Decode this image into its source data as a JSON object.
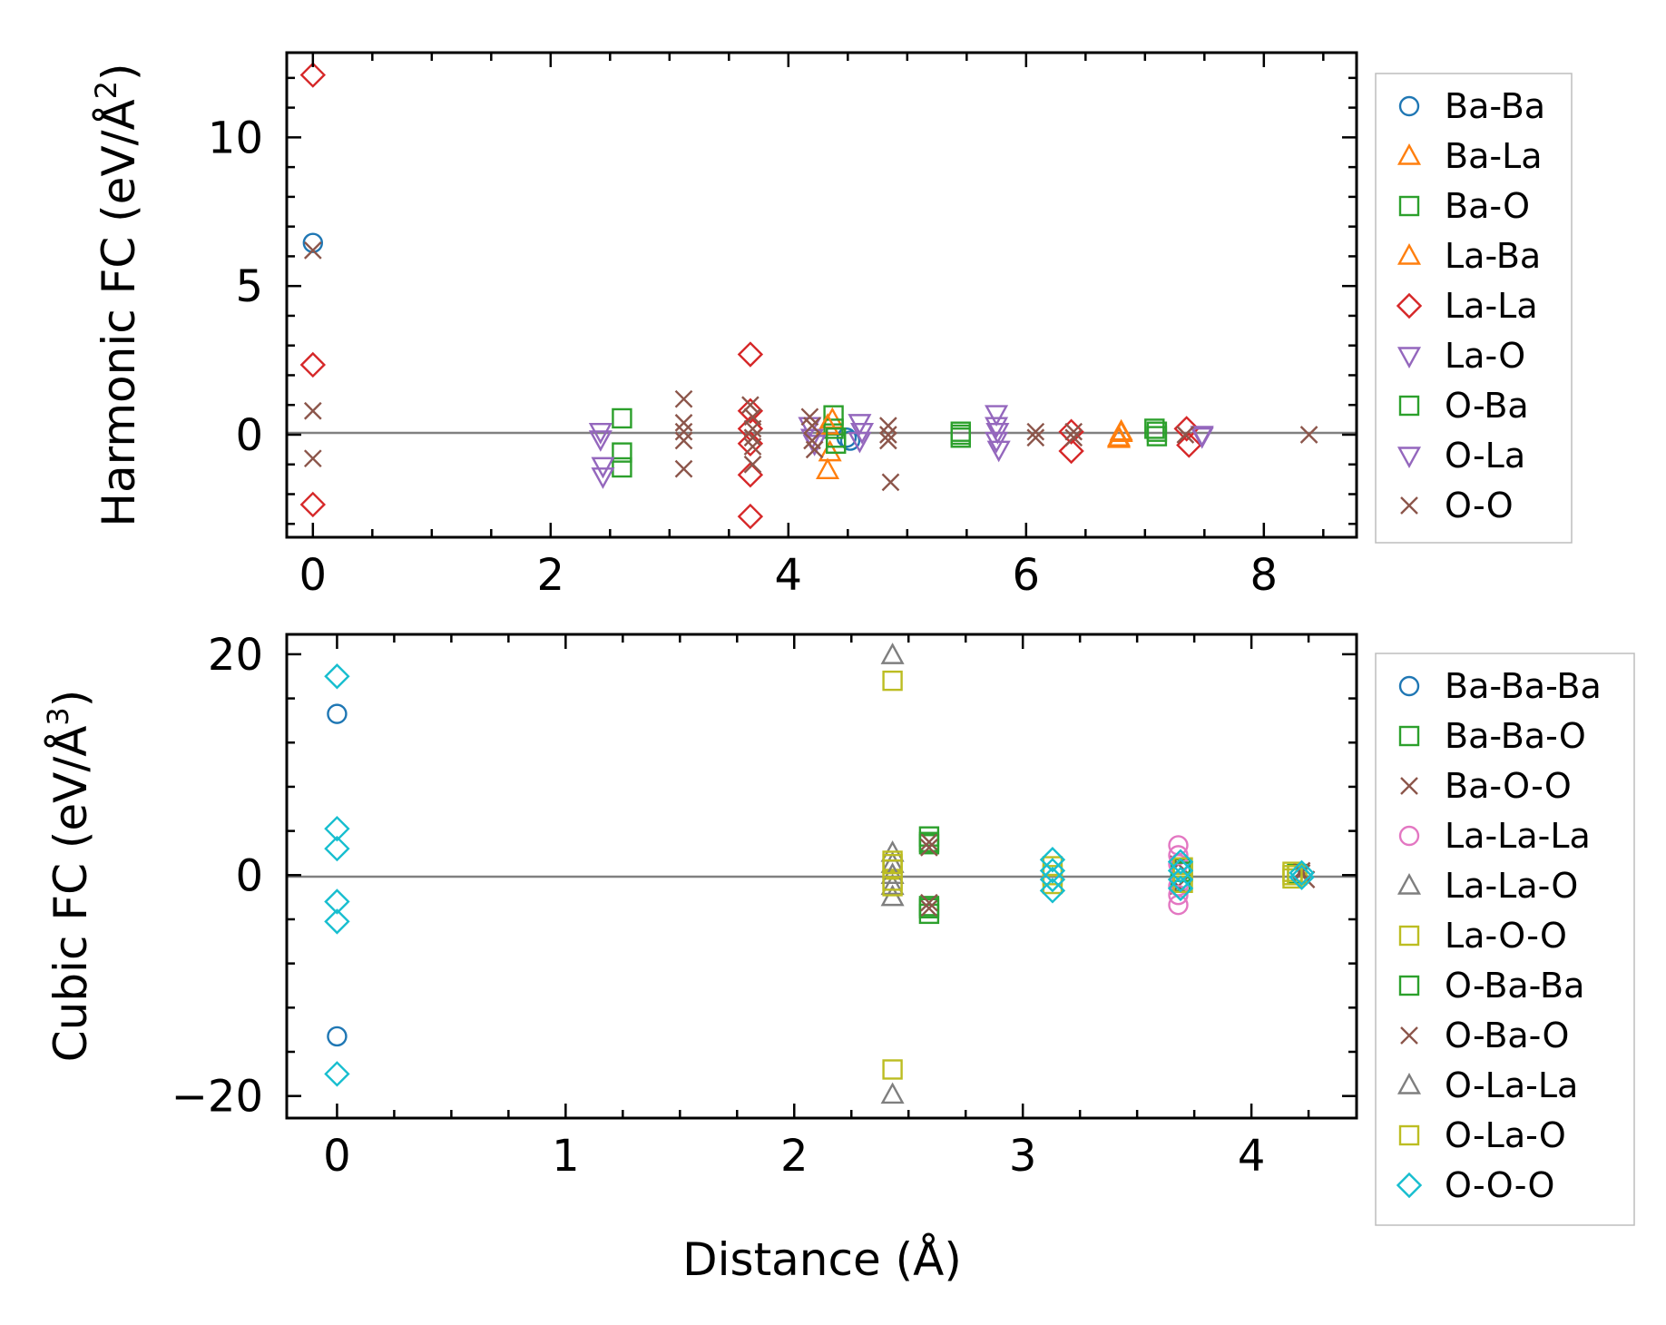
{
  "chart_data": [
    {
      "type": "scatter",
      "title": "",
      "xlabel": "",
      "ylabel": "Harmonic FC (eV/Å",
      "ylabel_sup": "2",
      "ylabel_close": ")",
      "xlim": [
        -0.22,
        8.78
      ],
      "ylim": [
        -3.45,
        12.85
      ],
      "xticks": [
        0,
        2,
        4,
        6,
        8
      ],
      "xtick_labels": [
        "0",
        "2",
        "4",
        "6",
        "8"
      ],
      "yticks": [
        0,
        5,
        10
      ],
      "ytick_labels": [
        "0",
        "5",
        "10"
      ],
      "zero_line": true,
      "legend": "right-outside",
      "series": [
        {
          "name": "Ba-Ba",
          "marker": "circle",
          "color": "#1f77b4",
          "x": [
            0,
            4.49,
            4.52
          ],
          "y": [
            6.45,
            -0.1,
            -0.2
          ]
        },
        {
          "name": "Ba-La",
          "marker": "triangle-up",
          "color": "#ff7f0e",
          "x": [
            4.33,
            4.35,
            4.37,
            6.78,
            6.8
          ],
          "y": [
            -1.2,
            -0.6,
            0.5,
            -0.1,
            0.1
          ]
        },
        {
          "name": "Ba-O",
          "marker": "square",
          "color": "#2ca02c",
          "x": [
            2.6,
            2.6,
            2.6,
            4.38,
            4.38,
            4.4,
            5.45,
            5.45,
            7.08,
            7.1
          ],
          "y": [
            0.55,
            -0.6,
            -1.1,
            0.65,
            0.2,
            -0.3,
            0.1,
            -0.1,
            0.2,
            -0.05
          ]
        },
        {
          "name": "La-Ba",
          "marker": "triangle-up",
          "color": "#ff7f0e",
          "x": [
            4.33,
            6.78,
            6.8
          ],
          "y": [
            0.3,
            -0.15,
            0.05
          ]
        },
        {
          "name": "La-La",
          "marker": "diamond",
          "color": "#d62728",
          "x": [
            0,
            0,
            0,
            3.68,
            3.68,
            3.68,
            3.68,
            3.68,
            3.68,
            6.38,
            6.38,
            7.35,
            7.37
          ],
          "y": [
            12.1,
            2.35,
            -2.35,
            2.7,
            0.8,
            0.2,
            -0.3,
            -1.35,
            -2.75,
            0.1,
            -0.55,
            0.2,
            -0.35
          ]
        },
        {
          "name": "La-O",
          "marker": "triangle-down",
          "color": "#9467bd",
          "x": [
            2.42,
            2.42,
            2.44,
            4.18,
            4.2,
            4.22,
            4.6,
            4.6,
            5.75,
            5.75,
            5.75,
            5.77,
            7.48
          ],
          "y": [
            0.1,
            -0.15,
            -1.4,
            0.3,
            -0.1,
            -0.3,
            0.4,
            -0.2,
            0.7,
            0.3,
            -0.2,
            -0.5,
            0.0
          ]
        },
        {
          "name": "O-Ba",
          "marker": "square",
          "color": "#2ca02c",
          "x": [
            4.4,
            5.45,
            7.1
          ],
          "y": [
            -0.1,
            0.0,
            0.1
          ]
        },
        {
          "name": "O-La",
          "marker": "triangle-down",
          "color": "#9467bd",
          "x": [
            2.44,
            4.62,
            5.76,
            7.48
          ],
          "y": [
            -1.05,
            0.1,
            0.1,
            -0.05
          ]
        },
        {
          "name": "O-O",
          "marker": "x",
          "color": "#8c564b",
          "x": [
            0,
            0,
            0,
            3.12,
            3.12,
            3.12,
            3.12,
            3.12,
            3.68,
            3.7,
            3.7,
            3.7,
            3.7,
            3.7,
            4.18,
            4.2,
            4.2,
            4.22,
            4.84,
            4.84,
            4.84,
            4.86,
            6.08,
            6.08,
            6.4,
            6.4,
            7.34,
            8.38
          ],
          "y": [
            6.2,
            0.8,
            -0.8,
            1.2,
            0.4,
            0.1,
            -0.2,
            -1.15,
            1.0,
            0.6,
            0.2,
            -0.1,
            -0.4,
            -1.0,
            0.6,
            0.3,
            -0.2,
            -0.5,
            0.3,
            0.0,
            -0.2,
            -1.6,
            0.1,
            -0.1,
            0.1,
            -0.1,
            0.0,
            0.0
          ]
        }
      ]
    },
    {
      "type": "scatter",
      "title": "",
      "xlabel": "Distance (Å)",
      "ylabel": "Cubic FC (eV/Å",
      "ylabel_sup": "3",
      "ylabel_close": ")",
      "xlim": [
        -0.22,
        4.46
      ],
      "ylim": [
        -22.0,
        21.8
      ],
      "xticks": [
        0,
        1,
        2,
        3,
        4
      ],
      "xtick_labels": [
        "0",
        "1",
        "2",
        "3",
        "4"
      ],
      "yticks": [
        -20,
        0,
        20
      ],
      "ytick_labels": [
        "−20",
        "0",
        "20"
      ],
      "zero_line": true,
      "legend": "right-outside",
      "series": [
        {
          "name": "Ba-Ba-Ba",
          "marker": "circle",
          "color": "#1f77b4",
          "x": [
            0,
            0
          ],
          "y": [
            14.6,
            -14.6
          ]
        },
        {
          "name": "Ba-Ba-O",
          "marker": "square",
          "color": "#2ca02c",
          "x": [
            2.59,
            2.59,
            2.59,
            2.59,
            3.69,
            3.69,
            4.2
          ],
          "y": [
            3.5,
            2.8,
            -2.8,
            -3.5,
            0.6,
            -0.6,
            0.1
          ]
        },
        {
          "name": "Ba-O-O",
          "marker": "x",
          "color": "#8c564b",
          "x": [
            2.59,
            2.59,
            3.68,
            3.68,
            4.22,
            4.24
          ],
          "y": [
            3.0,
            -3.0,
            1.0,
            -1.0,
            0.4,
            -0.4
          ]
        },
        {
          "name": "La-La-La",
          "marker": "circle",
          "color": "#e377c2",
          "x": [
            3.68,
            3.68,
            3.68,
            3.68,
            3.68,
            3.68
          ],
          "y": [
            2.7,
            1.8,
            1.0,
            -1.0,
            -1.8,
            -2.7
          ]
        },
        {
          "name": "La-La-O",
          "marker": "triangle-up",
          "color": "#7f7f7f",
          "x": [
            2.43,
            2.43,
            2.43,
            2.43
          ],
          "y": [
            2.0,
            1.0,
            -1.0,
            -2.0
          ]
        },
        {
          "name": "La-O-O",
          "marker": "square",
          "color": "#bcbd22",
          "x": [
            2.43,
            2.43,
            2.43,
            2.43,
            2.43,
            3.13,
            3.13,
            4.18,
            4.18,
            4.2
          ],
          "y": [
            17.6,
            1.3,
            0.5,
            -0.5,
            -17.6,
            0.8,
            -0.8,
            0.3,
            -0.3,
            0.0
          ]
        },
        {
          "name": "O-Ba-Ba",
          "marker": "square",
          "color": "#2ca02c",
          "x": [
            2.59,
            2.59,
            3.7
          ],
          "y": [
            3.0,
            -3.0,
            0.3
          ]
        },
        {
          "name": "O-Ba-O",
          "marker": "x",
          "color": "#8c564b",
          "x": [
            2.59,
            2.59,
            4.22
          ],
          "y": [
            2.5,
            -2.5,
            0.2
          ]
        },
        {
          "name": "O-La-La",
          "marker": "triangle-up",
          "color": "#7f7f7f",
          "x": [
            2.43,
            2.43,
            2.43
          ],
          "y": [
            19.9,
            0.0,
            -19.9
          ]
        },
        {
          "name": "O-La-O",
          "marker": "square",
          "color": "#bcbd22",
          "x": [
            2.43,
            2.43,
            3.13,
            3.7,
            3.7,
            4.18
          ],
          "y": [
            1.0,
            -1.0,
            0.0,
            0.7,
            -0.7,
            0.0
          ]
        },
        {
          "name": "O-O-O",
          "marker": "diamond",
          "color": "#17becf",
          "x": [
            0,
            0,
            0,
            0,
            0,
            0,
            3.13,
            3.13,
            3.13,
            3.13,
            3.69,
            3.69,
            3.69,
            3.69,
            4.22,
            4.22
          ],
          "y": [
            18.0,
            4.2,
            2.4,
            -2.4,
            -4.2,
            -18.0,
            1.4,
            0.4,
            -0.4,
            -1.4,
            1.2,
            0.4,
            -0.4,
            -1.2,
            0.2,
            -0.2
          ]
        }
      ]
    }
  ]
}
